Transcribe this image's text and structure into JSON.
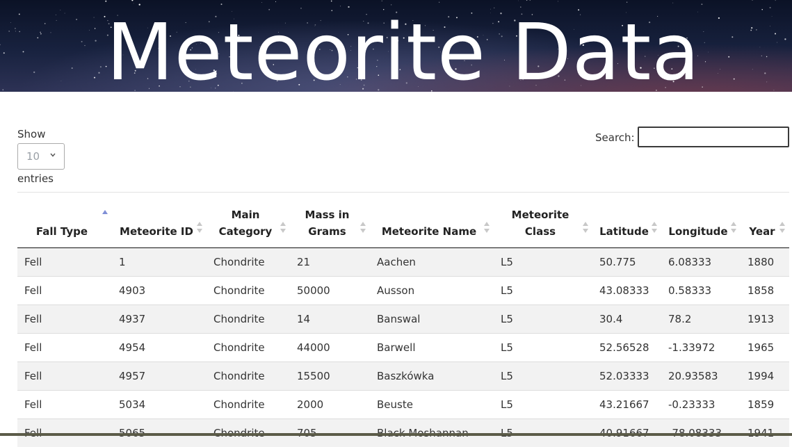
{
  "banner": {
    "title": "Meteorite Data"
  },
  "controls": {
    "show_label": "Show",
    "entries_value": "10",
    "entries_label": "entries",
    "search_label": "Search:",
    "search_value": ""
  },
  "table": {
    "columns": [
      "Fall Type",
      "Meteorite ID",
      "Main Category",
      "Mass in Grams",
      "Meteorite Name",
      "Meteorite Class",
      "Latitude",
      "Longitude",
      "Year"
    ],
    "sorted_column": "Fall Type",
    "sort_direction": "ascending",
    "rows": [
      [
        "Fell",
        "1",
        "Chondrite",
        "21",
        "Aachen",
        "L5",
        "50.775",
        "6.08333",
        "1880"
      ],
      [
        "Fell",
        "4903",
        "Chondrite",
        "50000",
        "Ausson",
        "L5",
        "43.08333",
        "0.58333",
        "1858"
      ],
      [
        "Fell",
        "4937",
        "Chondrite",
        "14",
        "Banswal",
        "L5",
        "30.4",
        "78.2",
        "1913"
      ],
      [
        "Fell",
        "4954",
        "Chondrite",
        "44000",
        "Barwell",
        "L5",
        "52.56528",
        "-1.33972",
        "1965"
      ],
      [
        "Fell",
        "4957",
        "Chondrite",
        "15500",
        "Baszkówka",
        "L5",
        "52.03333",
        "20.93583",
        "1994"
      ],
      [
        "Fell",
        "5034",
        "Chondrite",
        "2000",
        "Beuste",
        "L5",
        "43.21667",
        "-0.23333",
        "1859"
      ],
      [
        "Fell",
        "5065",
        "Chondrite",
        "705",
        "Black Moshannan",
        "L5",
        "40.91667",
        "-78.08333",
        "1941"
      ]
    ]
  },
  "colors": {
    "sort_active": "#7f8fd6",
    "sort_inactive": "#c8c8c8",
    "stripe": "#f2f2f2"
  }
}
